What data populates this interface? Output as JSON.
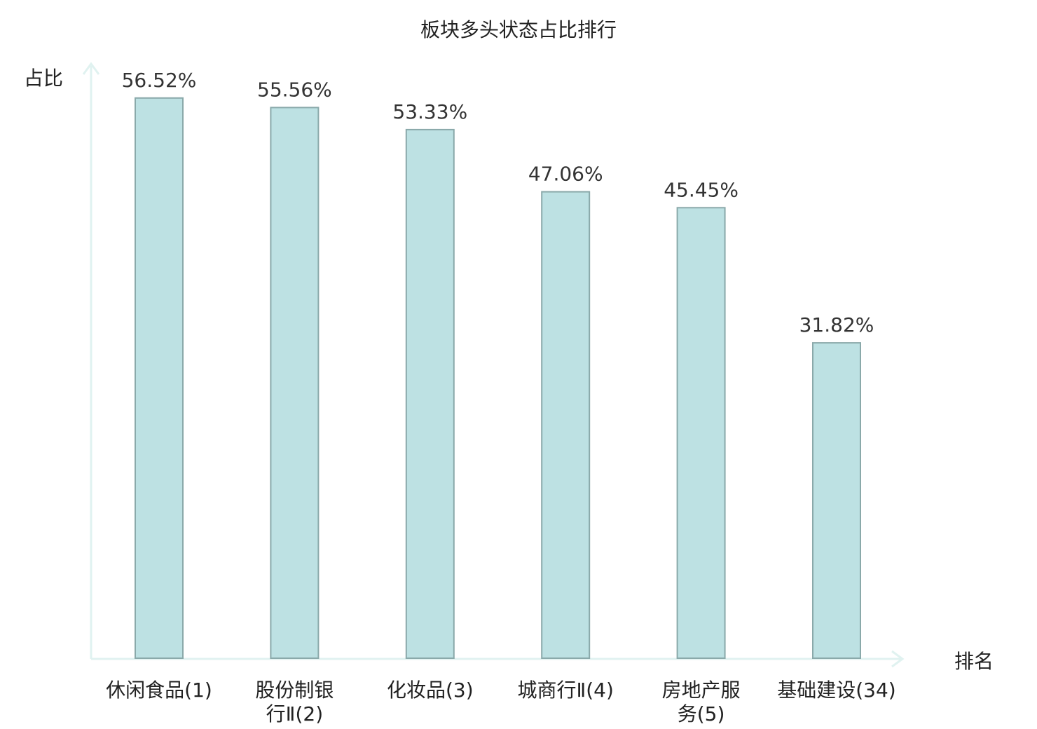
{
  "chart_data": {
    "type": "bar",
    "title": "板块多头状态占比排行",
    "xlabel": "排名",
    "ylabel": "占比",
    "categories": [
      "休闲食品(1)",
      "股份制银行Ⅱ(2)",
      "化妆品(3)",
      "城商行Ⅱ(4)",
      "房地产服务(5)",
      "基础建设(34)"
    ],
    "category_lines": [
      [
        "休闲食品(1)"
      ],
      [
        "股份制银",
        "行Ⅱ(2)"
      ],
      [
        "化妆品(3)"
      ],
      [
        "城商行Ⅱ(4)"
      ],
      [
        "房地产服",
        "务(5)"
      ],
      [
        "基础建设(34)"
      ]
    ],
    "values": [
      56.52,
      55.56,
      53.33,
      47.06,
      45.45,
      31.82
    ],
    "value_labels": [
      "56.52%",
      "55.56%",
      "53.33%",
      "47.06%",
      "45.45%",
      "31.82%"
    ],
    "ylim": [
      0,
      60
    ],
    "grid": false,
    "highlight_index": 5,
    "colors": {
      "bar_fill": "#bde1e3",
      "bar_stroke": "#8aa9aa",
      "axis": "#e0f2f0",
      "highlight_text": "#e0201b",
      "text": "#222222"
    }
  }
}
